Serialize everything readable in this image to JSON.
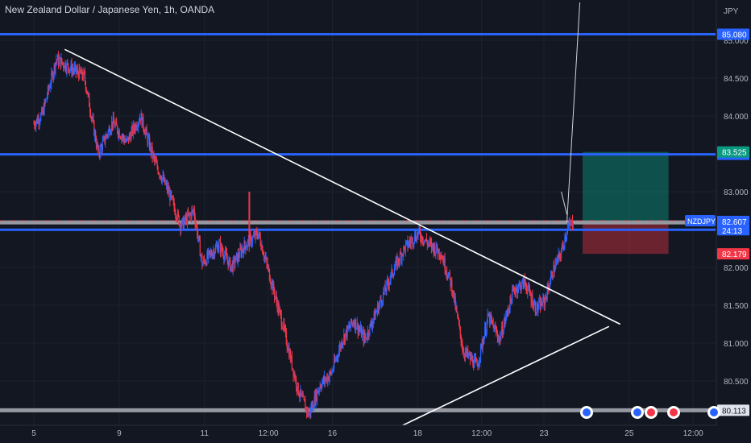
{
  "chart_data": {
    "type": "candlestick",
    "title": "New Zealand Dollar / Japanese Yen, 1h, OANDA",
    "currency": "JPY",
    "symbol": "NZDJPY",
    "countdown": "24:13",
    "ylim": [
      80.0,
      85.45
    ],
    "y_ticks": [
      80.5,
      81.0,
      81.5,
      82.0,
      82.5,
      83.0,
      83.5,
      84.0,
      84.5,
      85.0
    ],
    "y_tick_labels": [
      "80.500",
      "81.000",
      "81.500",
      "82.000",
      "82.500",
      "83.000",
      "83.500",
      "84.000",
      "84.500",
      "85.000"
    ],
    "x_ticks": [
      {
        "label": "5",
        "t": 0
      },
      {
        "label": "9",
        "t": 0.152
      },
      {
        "label": "11",
        "t": 0.304
      },
      {
        "label": "12:00",
        "t": 0.418
      },
      {
        "label": "16",
        "t": 0.532
      },
      {
        "label": "18",
        "t": 0.684
      },
      {
        "label": "12:00",
        "t": 0.798
      },
      {
        "label": "23",
        "t": 0.909
      },
      {
        "label": "25",
        "t": 1.061
      },
      {
        "label": "12:00",
        "t": 1.175
      }
    ],
    "price_keys": [
      [
        0.0,
        83.9
      ],
      [
        0.015,
        84.02
      ],
      [
        0.04,
        84.75
      ],
      [
        0.09,
        84.52
      ],
      [
        0.115,
        83.5
      ],
      [
        0.14,
        83.92
      ],
      [
        0.165,
        83.65
      ],
      [
        0.19,
        84.0
      ],
      [
        0.215,
        83.4
      ],
      [
        0.24,
        83.0
      ],
      [
        0.262,
        82.55
      ],
      [
        0.285,
        82.75
      ],
      [
        0.3,
        82.05
      ],
      [
        0.33,
        82.3
      ],
      [
        0.352,
        82.0
      ],
      [
        0.375,
        82.28
      ],
      [
        0.4,
        82.45
      ],
      [
        0.42,
        81.9
      ],
      [
        0.445,
        81.2
      ],
      [
        0.47,
        80.4
      ],
      [
        0.49,
        80.05
      ],
      [
        0.51,
        80.45
      ],
      [
        0.53,
        80.6
      ],
      [
        0.55,
        81.05
      ],
      [
        0.57,
        81.3
      ],
      [
        0.59,
        81.05
      ],
      [
        0.615,
        81.5
      ],
      [
        0.64,
        81.95
      ],
      [
        0.66,
        82.25
      ],
      [
        0.685,
        82.45
      ],
      [
        0.705,
        82.3
      ],
      [
        0.725,
        82.2
      ],
      [
        0.745,
        81.75
      ],
      [
        0.765,
        80.9
      ],
      [
        0.79,
        80.7
      ],
      [
        0.81,
        81.35
      ],
      [
        0.83,
        81.05
      ],
      [
        0.855,
        81.7
      ],
      [
        0.875,
        81.8
      ],
      [
        0.895,
        81.45
      ],
      [
        0.91,
        81.55
      ],
      [
        0.925,
        81.95
      ],
      [
        0.94,
        82.2
      ],
      [
        0.95,
        82.5
      ],
      [
        0.962,
        82.61
      ]
    ],
    "horizontal_levels": [
      {
        "price": 85.08,
        "color": "#2962ff",
        "label": "85.080"
      },
      {
        "price": 83.494,
        "color": "#2962ff",
        "label": "83.494"
      },
      {
        "price": 82.498,
        "color": "#2962ff",
        "label": "82.498"
      },
      {
        "price": 82.595,
        "color": "#9598a1",
        "label": "82.595"
      },
      {
        "price": 80.113,
        "color": "#9598a1",
        "label": "80.113"
      }
    ],
    "current_price": {
      "price": 82.607,
      "label": "82.607"
    },
    "take_profit": {
      "price": 83.525,
      "label": "83.525",
      "color": "#089981"
    },
    "stop_loss": {
      "price": 82.179,
      "label": "82.179",
      "color": "#f23645"
    },
    "position_zone": {
      "t_start": 0.978,
      "t_end": 1.131,
      "entry": 82.6,
      "target": 83.525,
      "stop": 82.179
    },
    "trendlines": [
      {
        "t1": 0.055,
        "p1": 84.88,
        "t2": 1.045,
        "p2": 81.25
      },
      {
        "t1": 0.625,
        "p1": 79.8,
        "t2": 1.025,
        "p2": 81.22
      }
    ]
  }
}
